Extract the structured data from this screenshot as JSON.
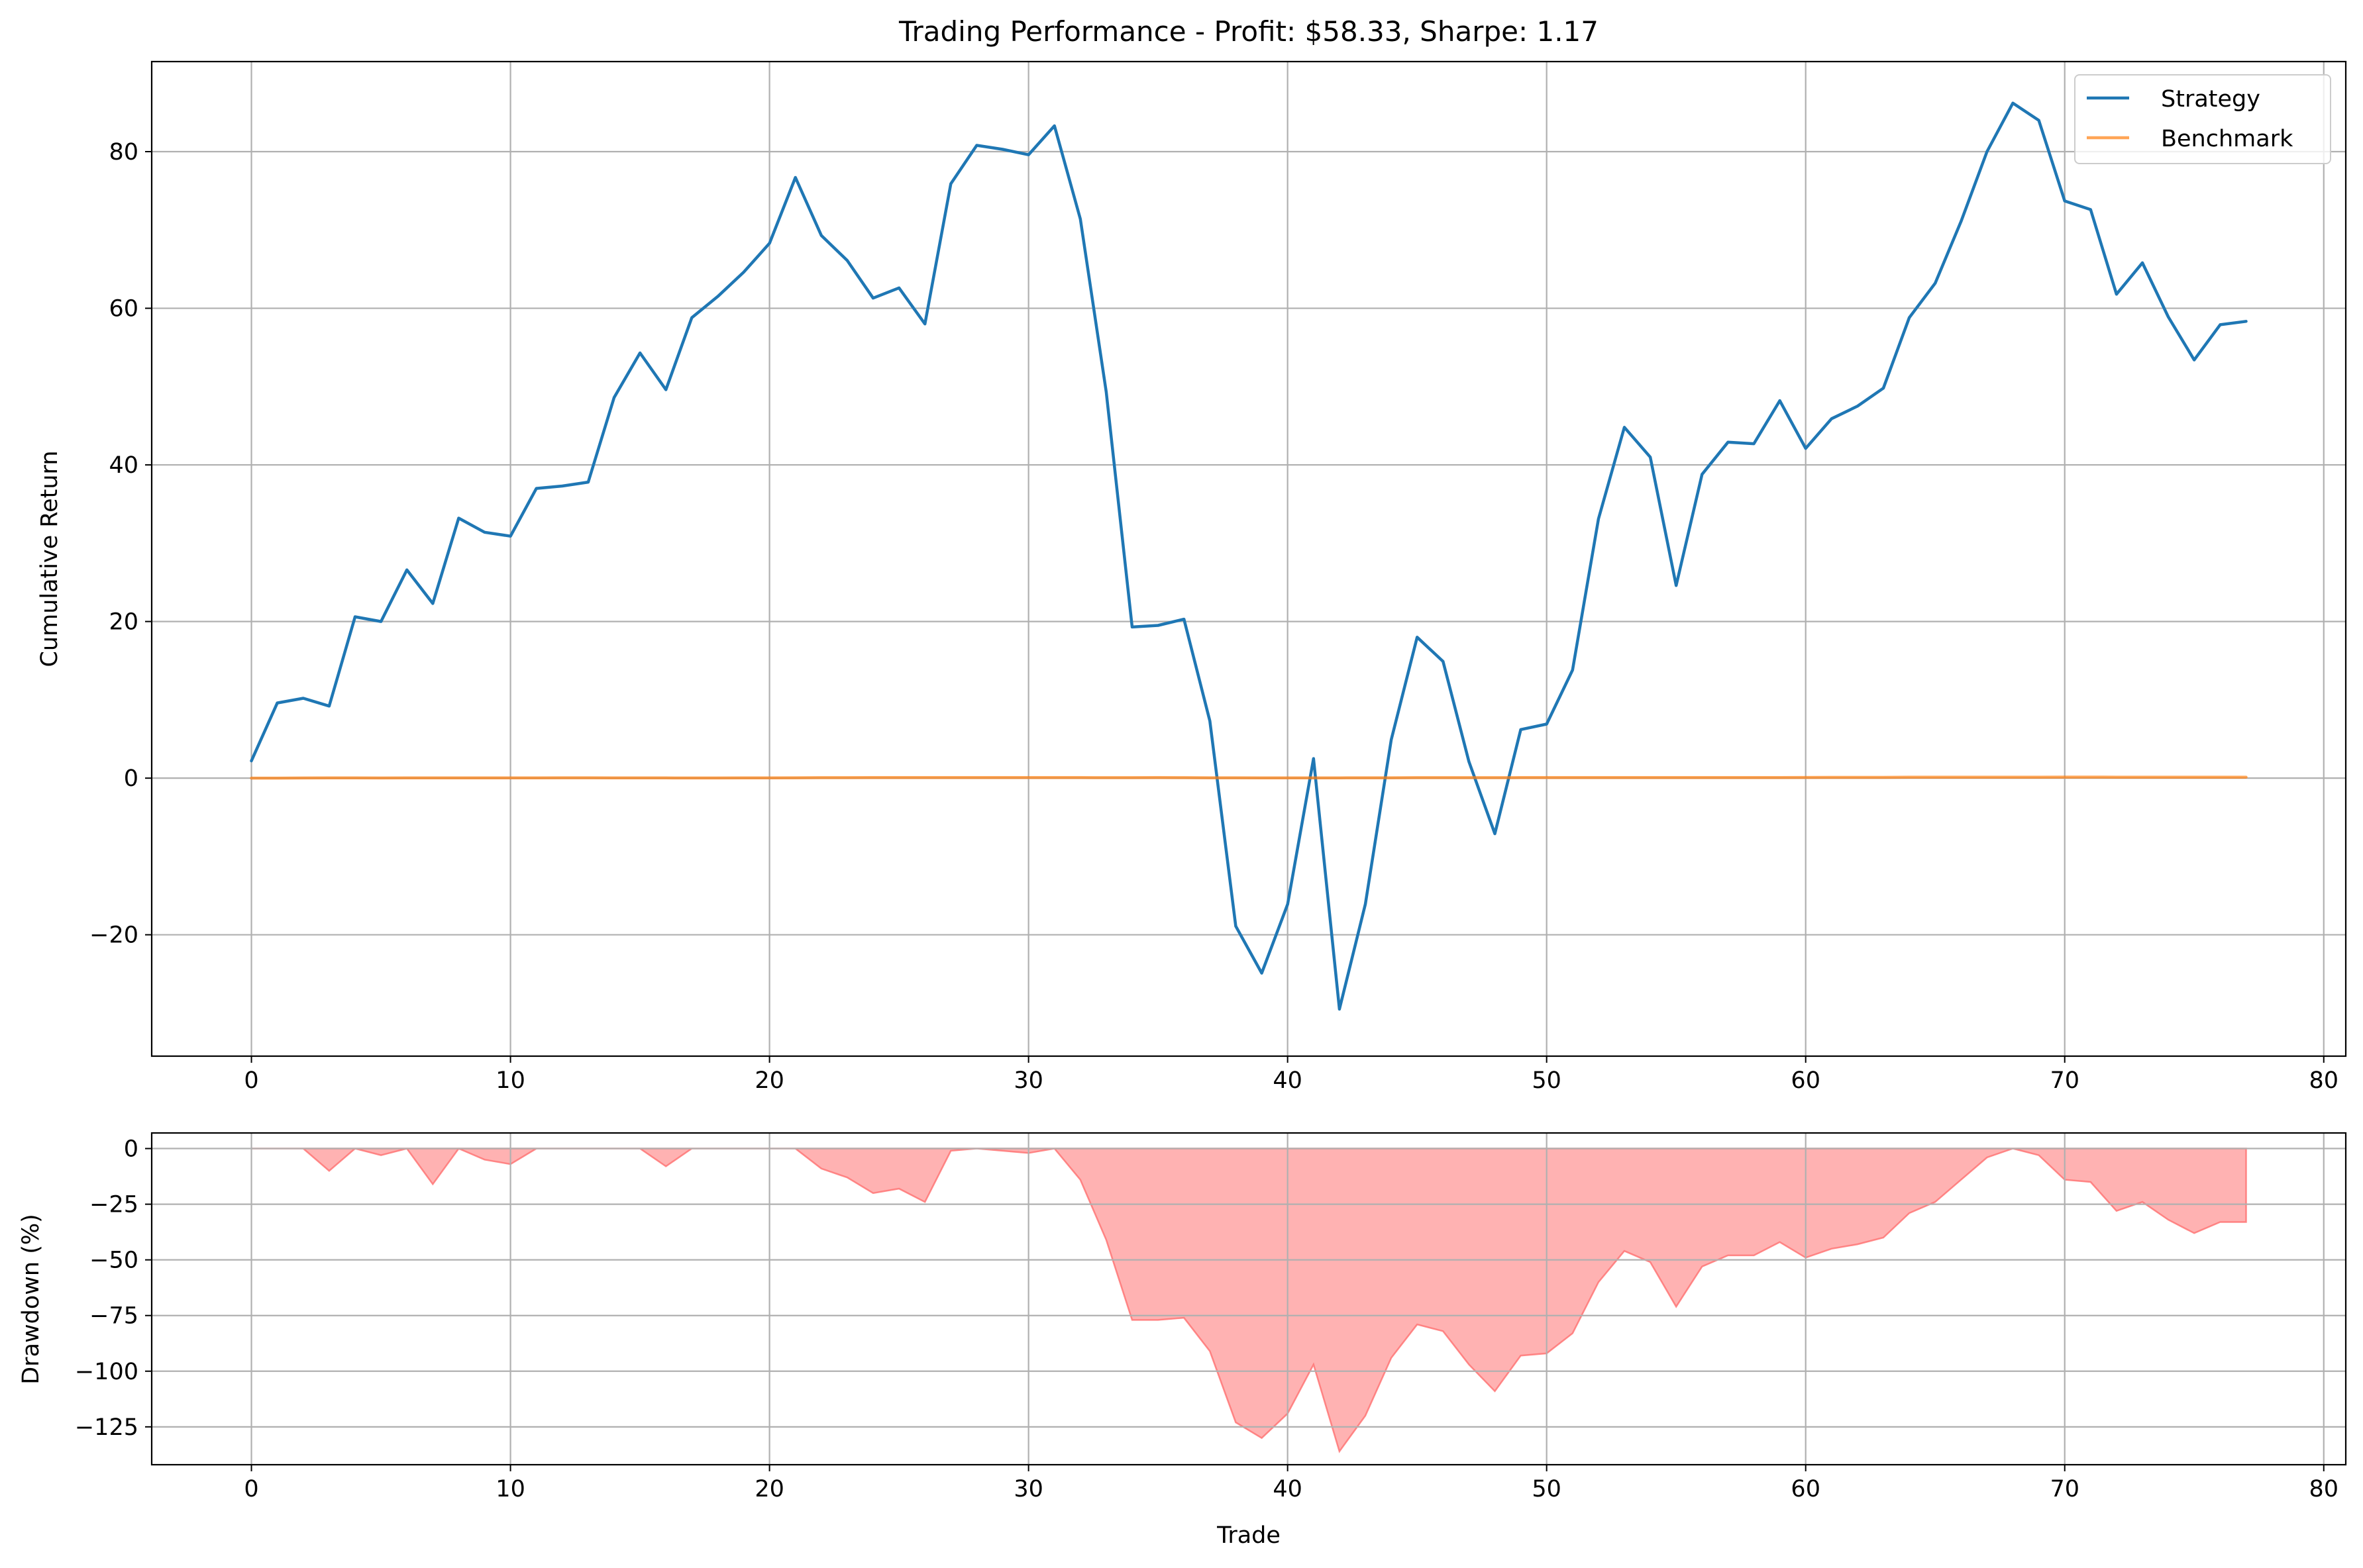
{
  "chart_data": [
    {
      "type": "line",
      "title": "Trading Performance - Profit: $58.33, Sharpe: 1.17",
      "xlabel": "",
      "ylabel": "Cumulative Return",
      "xlim": [
        -3.85,
        80.85
      ],
      "ylim": [
        -35.5,
        91.5
      ],
      "xticks": [
        0,
        10,
        20,
        30,
        40,
        50,
        60,
        70,
        80
      ],
      "xtick_labels": [
        "0",
        "10",
        "20",
        "30",
        "40",
        "50",
        "60",
        "70",
        "80"
      ],
      "yticks": [
        -20,
        0,
        20,
        40,
        60,
        80
      ],
      "ytick_labels": [
        "−20",
        "0",
        "20",
        "40",
        "60",
        "80"
      ],
      "grid": true,
      "legend_position": "top-right",
      "series": [
        {
          "name": "Strategy",
          "color": "#1f77b4",
          "x": [
            0,
            1,
            2,
            3,
            4,
            5,
            6,
            7,
            8,
            9,
            10,
            11,
            12,
            13,
            14,
            15,
            16,
            17,
            18,
            19,
            20,
            21,
            22,
            23,
            24,
            25,
            26,
            27,
            28,
            29,
            30,
            31,
            32,
            33,
            34,
            35,
            36,
            37,
            38,
            39,
            40,
            41,
            42,
            43,
            44,
            45,
            46,
            47,
            48,
            49,
            50,
            51,
            52,
            53,
            54,
            55,
            56,
            57,
            58,
            59,
            60,
            61,
            62,
            63,
            64,
            65,
            66,
            67,
            68,
            69,
            70,
            71,
            72,
            73,
            74,
            75,
            76,
            77
          ],
          "values": [
            2.2,
            9.6,
            10.2,
            9.2,
            20.6,
            20.0,
            26.6,
            22.3,
            33.2,
            31.4,
            30.9,
            37.0,
            37.3,
            37.8,
            48.6,
            54.3,
            49.6,
            58.8,
            61.5,
            64.6,
            68.3,
            76.7,
            69.3,
            66.1,
            61.3,
            62.6,
            58.0,
            75.9,
            80.8,
            80.3,
            79.6,
            83.3,
            71.4,
            49.3,
            19.3,
            19.5,
            20.3,
            7.3,
            -18.9,
            -24.9,
            -16.1,
            2.5,
            -29.5,
            -16.1,
            4.9,
            18.0,
            14.9,
            2.1,
            -7.1,
            6.2,
            6.9,
            13.8,
            33.1,
            44.8,
            41.0,
            24.6,
            38.8,
            42.9,
            42.7,
            48.2,
            42.1,
            45.9,
            47.5,
            49.8,
            58.8,
            63.2,
            71.1,
            80.0,
            86.2,
            84.0,
            73.7,
            72.6,
            61.8,
            65.8,
            58.9,
            53.4,
            57.9,
            58.33
          ]
        },
        {
          "name": "Benchmark",
          "color": "#ff7f0e",
          "x": [
            0,
            1,
            2,
            3,
            4,
            5,
            6,
            7,
            8,
            9,
            10,
            11,
            12,
            13,
            14,
            15,
            16,
            17,
            18,
            19,
            20,
            21,
            22,
            23,
            24,
            25,
            26,
            27,
            28,
            29,
            30,
            31,
            32,
            33,
            34,
            35,
            36,
            37,
            38,
            39,
            40,
            41,
            42,
            43,
            44,
            45,
            46,
            47,
            48,
            49,
            50,
            51,
            52,
            53,
            54,
            55,
            56,
            57,
            58,
            59,
            60,
            61,
            62,
            63,
            64,
            65,
            66,
            67,
            68,
            69,
            70,
            71,
            72,
            73,
            74,
            75,
            76,
            77
          ],
          "values": [
            0.0,
            0.0,
            0.02,
            0.03,
            0.03,
            0.02,
            0.03,
            0.04,
            0.03,
            0.03,
            0.04,
            0.04,
            0.05,
            0.05,
            0.04,
            0.04,
            0.03,
            0.02,
            0.02,
            0.03,
            0.04,
            0.05,
            0.06,
            0.06,
            0.07,
            0.07,
            0.07,
            0.08,
            0.08,
            0.08,
            0.08,
            0.08,
            0.07,
            0.06,
            0.06,
            0.07,
            0.06,
            0.05,
            0.05,
            0.04,
            0.04,
            0.04,
            0.04,
            0.05,
            0.05,
            0.06,
            0.06,
            0.06,
            0.06,
            0.07,
            0.07,
            0.07,
            0.08,
            0.07,
            0.07,
            0.07,
            0.07,
            0.08,
            0.08,
            0.08,
            0.09,
            0.1,
            0.1,
            0.1,
            0.11,
            0.11,
            0.11,
            0.11,
            0.12,
            0.12,
            0.13,
            0.13,
            0.12,
            0.12,
            0.12,
            0.11,
            0.12,
            0.12
          ]
        }
      ]
    },
    {
      "type": "area",
      "title": "",
      "xlabel": "Trade",
      "ylabel": "Drawdown (%)",
      "xlim": [
        -3.85,
        80.85
      ],
      "ylim": [
        -142,
        7
      ],
      "xticks": [
        0,
        10,
        20,
        30,
        40,
        50,
        60,
        70,
        80
      ],
      "xtick_labels": [
        "0",
        "10",
        "20",
        "30",
        "40",
        "50",
        "60",
        "70",
        "80"
      ],
      "yticks": [
        0,
        -25,
        -50,
        -75,
        -100,
        -125
      ],
      "ytick_labels": [
        "0",
        "−25",
        "−50",
        "−75",
        "−100",
        "−125"
      ],
      "grid": true,
      "series": [
        {
          "fill_color": "#ff7f7f",
          "edge_color": "#ff6f6f",
          "x": [
            0,
            1,
            2,
            3,
            4,
            5,
            6,
            7,
            8,
            9,
            10,
            11,
            12,
            13,
            14,
            15,
            16,
            17,
            18,
            19,
            20,
            21,
            22,
            23,
            24,
            25,
            26,
            27,
            28,
            29,
            30,
            31,
            32,
            33,
            34,
            35,
            36,
            37,
            38,
            39,
            40,
            41,
            42,
            43,
            44,
            45,
            46,
            47,
            48,
            49,
            50,
            51,
            52,
            53,
            54,
            55,
            56,
            57,
            58,
            59,
            60,
            61,
            62,
            63,
            64,
            65,
            66,
            67,
            68,
            69,
            70,
            71,
            72,
            73,
            74,
            75,
            76,
            77
          ],
          "values": [
            0,
            0,
            0,
            -10,
            0,
            -3,
            0,
            -16,
            0,
            -5,
            -7,
            0,
            0,
            0,
            0,
            0,
            -8,
            0,
            0,
            0,
            0,
            0,
            -9,
            -13,
            -20,
            -18,
            -24,
            -1,
            0,
            -1,
            -2,
            0,
            -14,
            -41,
            -77,
            -77,
            -76,
            -91,
            -123,
            -130,
            -119,
            -97,
            -136,
            -120,
            -94,
            -79,
            -82,
            -97,
            -109,
            -93,
            -92,
            -83,
            -60,
            -46,
            -51,
            -71,
            -53,
            -48,
            -48,
            -42,
            -49,
            -45,
            -43,
            -40,
            -29,
            -24,
            -14,
            -4,
            0,
            -3,
            -14,
            -15,
            -28,
            -24,
            -32,
            -38,
            -33,
            -33
          ]
        }
      ]
    }
  ]
}
